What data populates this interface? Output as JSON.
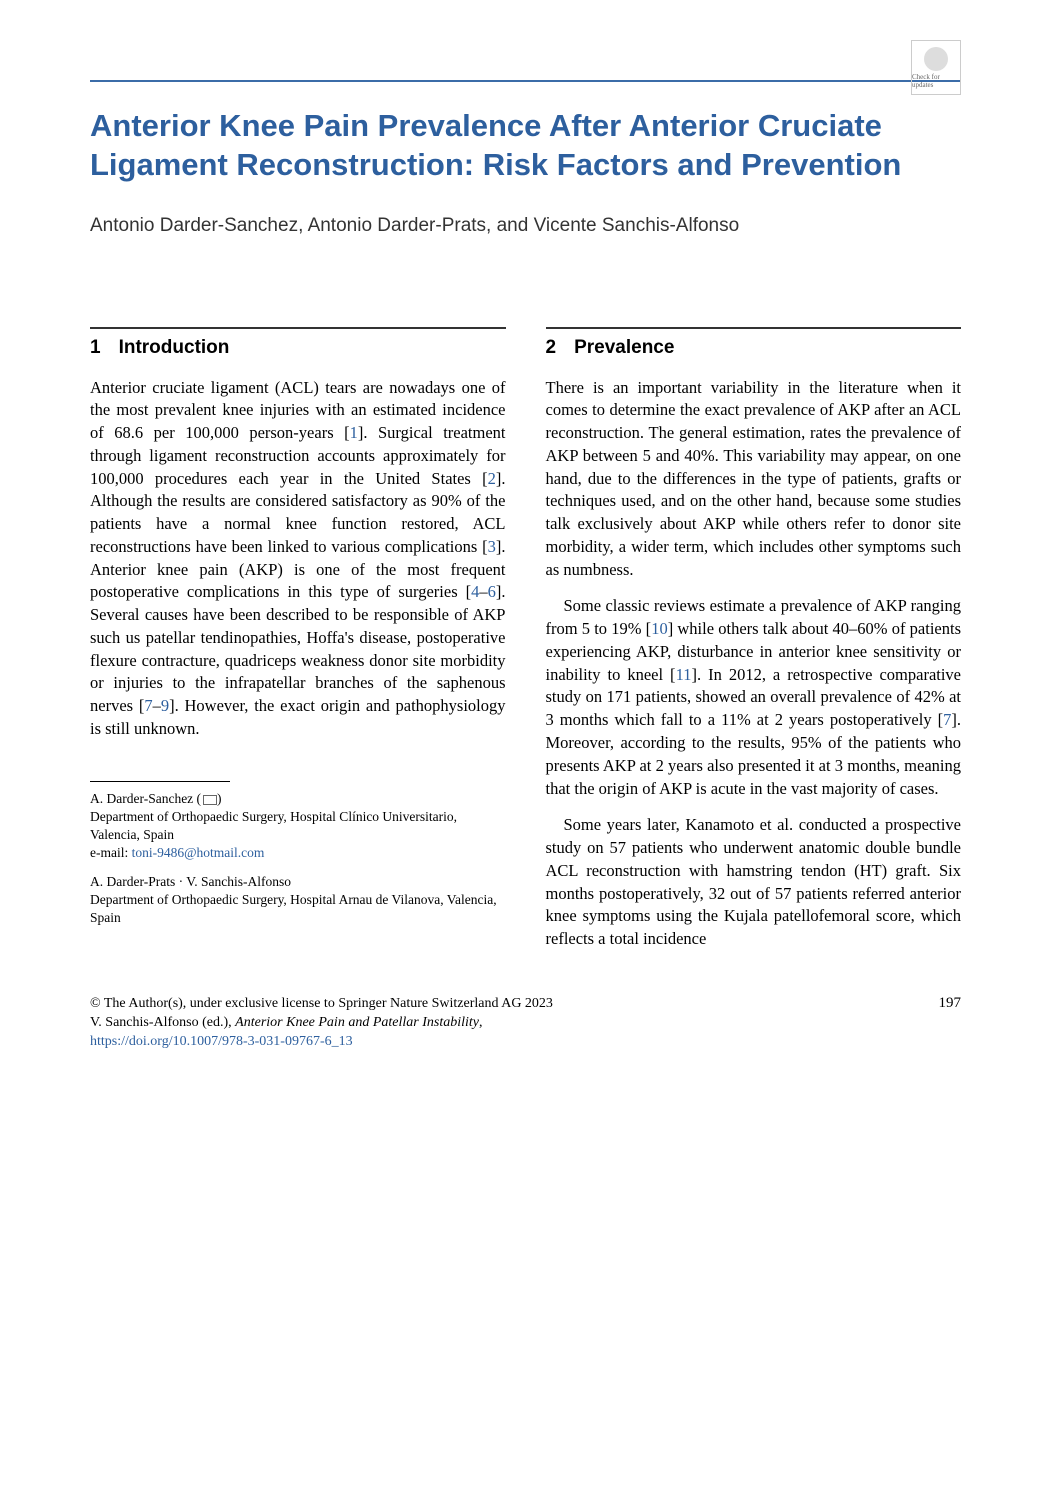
{
  "check_updates": {
    "label": "Check for updates"
  },
  "title": "Anterior Knee Pain Prevalence After Anterior Cruciate Ligament Reconstruction: Risk Factors and Prevention",
  "authors": "Antonio Darder-Sanchez, Antonio Darder-Prats, and Vicente Sanchis-Alfonso",
  "section1": {
    "number": "1",
    "title": "Introduction",
    "para1_a": "Anterior cruciate ligament (ACL) tears are nowadays one of the most prevalent knee injuries with an estimated incidence of 68.6 per 100,000 person-years [",
    "ref1": "1",
    "para1_b": "]. Surgical treatment through ligament reconstruction accounts approximately for 100,000 procedures each year in the United States [",
    "ref2": "2",
    "para1_c": "]. Although the results are considered satisfactory as 90% of the patients have a normal knee function restored, ACL reconstructions have been linked to various complications [",
    "ref3": "3",
    "para1_d": "]. Anterior knee pain (AKP) is one of the most frequent postoperative complications in this type of surgeries [",
    "ref4": "4",
    "ref_dash1": "–",
    "ref6": "6",
    "para1_e": "]. Several causes have been described to be responsible of AKP such us patellar tendinopathies, Hoffa's disease, postoperative flexure contracture, quadriceps weakness donor site morbidity or injuries to the infrapatellar branches of the saphenous nerves [",
    "ref7": "7",
    "ref_dash2": "–",
    "ref9": "9",
    "para1_f": "]. However, the exact origin and pathophysiology is still unknown."
  },
  "section2": {
    "number": "2",
    "title": "Prevalence",
    "para1": "There is an important variability in the literature when it comes to determine the exact prevalence of AKP after an ACL reconstruction. The general estimation, rates the prevalence of AKP between 5 and 40%. This variability may appear, on one hand, due to the differences in the type of patients, grafts or techniques used, and on the other hand, because some studies talk exclusively about AKP while others refer to donor site morbidity, a wider term, which includes other symptoms such as numbness.",
    "para2_a": "Some classic reviews estimate a prevalence of AKP ranging from 5 to 19% [",
    "ref10": "10",
    "para2_b": "] while others talk about 40–60% of patients experiencing AKP, disturbance in anterior knee sensitivity or inability to kneel [",
    "ref11": "11",
    "para2_c": "]. In 2012, a retrospective comparative study on 171 patients, showed an overall prevalence of 42% at 3 months which fall to a 11% at 2 years postoperatively [",
    "ref7b": "7",
    "para2_d": "]. Moreover, according to the results, 95% of the patients who presents AKP at 2 years also presented it at 3 months, meaning that the origin of AKP is acute in the vast majority of cases.",
    "para3": "Some years later, Kanamoto et al. conducted a prospective study on 57 patients who underwent anatomic double bundle ACL reconstruction with hamstring tendon (HT) graft. Six months postoperatively, 32 out of 57 patients referred anterior knee symptoms using the Kujala patellofemoral score, which reflects a total incidence"
  },
  "footnotes": {
    "author1_name": "A. Darder-Sanchez (",
    "author1_close": ")",
    "author1_affil": "Department of Orthopaedic Surgery, Hospital Clínico Universitario, Valencia, Spain",
    "author1_email_label": "e-mail: ",
    "author1_email": "toni-9486@hotmail.com",
    "author2_names": "A. Darder-Prats · V. Sanchis-Alfonso",
    "author2_affil": "Department of Orthopaedic Surgery, Hospital Arnau de Vilanova, Valencia, Spain"
  },
  "copyright": {
    "line1": "© The Author(s), under exclusive license to Springer Nature Switzerland AG 2023",
    "line2_a": "V. Sanchis-Alfonso (ed.), ",
    "line2_b": "Anterior Knee Pain and Patellar Instability",
    "line2_c": ",",
    "doi": "https://doi.org/10.1007/978-3-031-09767-6_13"
  },
  "page_number": "197",
  "colors": {
    "title_blue": "#2d5f9e",
    "divider_blue": "#3b6ca8",
    "link_blue": "#2d5f9e",
    "text_black": "#000000",
    "background": "#ffffff"
  }
}
